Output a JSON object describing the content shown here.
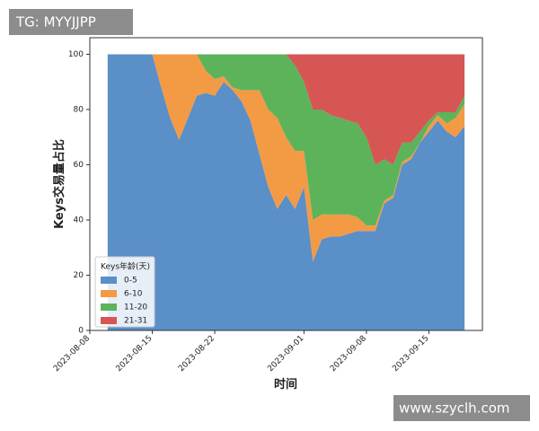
{
  "chart_data": {
    "type": "stackedarea",
    "x_label": "时间",
    "y_label": "Keys交易量占比",
    "legend_title": "Keys年龄(天)",
    "legend": "lower left",
    "x": [
      "2023-08-10",
      "2023-08-11",
      "2023-08-12",
      "2023-08-13",
      "2023-08-14",
      "2023-08-15",
      "2023-08-16",
      "2023-08-17",
      "2023-08-18",
      "2023-08-19",
      "2023-08-20",
      "2023-08-21",
      "2023-08-22",
      "2023-08-23",
      "2023-08-24",
      "2023-08-25",
      "2023-08-26",
      "2023-08-27",
      "2023-08-28",
      "2023-08-29",
      "2023-08-30",
      "2023-08-31",
      "2023-09-01",
      "2023-09-02",
      "2023-09-03",
      "2023-09-04",
      "2023-09-05",
      "2023-09-06",
      "2023-09-07",
      "2023-09-08",
      "2023-09-09",
      "2023-09-10",
      "2023-09-11",
      "2023-09-12",
      "2023-09-13",
      "2023-09-14",
      "2023-09-15",
      "2023-09-16",
      "2023-09-17",
      "2023-09-18",
      "2023-09-19"
    ],
    "series": [
      {
        "name": "0-5",
        "color": "#5b8fc7",
        "values": [
          100,
          100,
          100,
          100,
          100,
          100,
          88,
          77,
          69,
          77,
          85,
          86,
          85,
          90,
          87,
          83,
          76,
          64,
          52,
          44,
          49,
          44,
          52,
          25,
          33,
          34,
          34,
          35,
          36,
          36,
          36,
          46,
          48,
          60,
          62,
          68,
          72,
          76,
          72,
          70,
          74
        ]
      },
      {
        "name": "6-10",
        "color": "#f39a45",
        "values": [
          0,
          0,
          0,
          0,
          0,
          0,
          12,
          23,
          31,
          23,
          15,
          8,
          6,
          2,
          1,
          4,
          11,
          23,
          28,
          33,
          21,
          21,
          13,
          15,
          9,
          8,
          8,
          7,
          5,
          2,
          2,
          1,
          1,
          1,
          1,
          0,
          2,
          2,
          3,
          7,
          8
        ]
      },
      {
        "name": "11-20",
        "color": "#5db35a",
        "values": [
          0,
          0,
          0,
          0,
          0,
          0,
          0,
          0,
          0,
          0,
          0,
          6,
          9,
          8,
          12,
          13,
          13,
          13,
          20,
          23,
          30,
          31,
          25,
          40,
          38,
          36,
          35,
          34,
          34,
          32,
          22,
          15,
          11,
          7,
          5,
          4,
          2,
          1,
          4,
          2,
          3
        ]
      },
      {
        "name": "21-31",
        "color": "#d65654",
        "values": [
          0,
          0,
          0,
          0,
          0,
          0,
          0,
          0,
          0,
          0,
          0,
          0,
          0,
          0,
          0,
          0,
          0,
          0,
          0,
          0,
          0,
          4,
          10,
          20,
          20,
          22,
          23,
          24,
          25,
          30,
          40,
          38,
          40,
          32,
          32,
          28,
          24,
          21,
          21,
          21,
          15
        ]
      }
    ],
    "xlim": [
      "2023-08-08",
      "2023-09-21"
    ],
    "xticks": [
      "2023-08-08",
      "2023-08-15",
      "2023-08-22",
      "2023-09-01",
      "2023-09-08",
      "2023-09-15"
    ],
    "ylim": [
      0,
      106
    ],
    "yticks": [
      0,
      20,
      40,
      60,
      80,
      100
    ]
  },
  "watermarks": [
    "TG: MYYJJPP",
    "www.szyclh.com"
  ]
}
